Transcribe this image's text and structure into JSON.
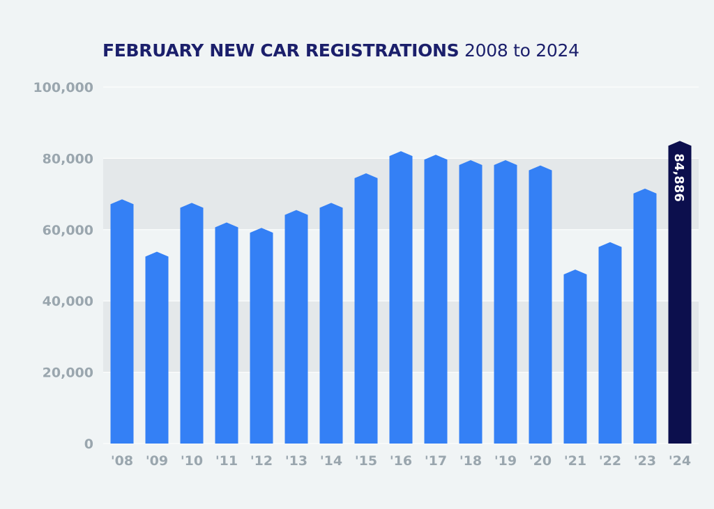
{
  "title": {
    "main": "FEBRUARY NEW CAR REGISTRATIONS",
    "sub": "2008 to 2024"
  },
  "colors": {
    "bar": "#3480f5",
    "highlight": "#0c0f4d",
    "band": "#e4e8ea",
    "grid": "#ffffff",
    "tick": "#9aa6ae",
    "title": "#1b1f6b",
    "background": "#f0f4f5"
  },
  "chart_data": {
    "type": "bar",
    "title": "FEBRUARY NEW CAR REGISTRATIONS 2008 to 2024",
    "xlabel": "",
    "ylabel": "",
    "categories": [
      "'08",
      "'09",
      "'10",
      "'11",
      "'12",
      "'13",
      "'14",
      "'15",
      "'16",
      "'17",
      "'18",
      "'19",
      "'20",
      "'21",
      "'22",
      "'23",
      "'24"
    ],
    "values": [
      68500,
      53800,
      67500,
      62000,
      60500,
      65500,
      67500,
      75800,
      82000,
      81000,
      79500,
      79500,
      78000,
      48800,
      56500,
      71500,
      84886
    ],
    "highlight_index": 16,
    "highlight_label": "84,886",
    "ylim": [
      0,
      100000
    ],
    "yticks": [
      0,
      20000,
      40000,
      60000,
      80000,
      100000
    ],
    "ytick_labels": [
      "0",
      "20,000",
      "40,000",
      "60,000",
      "80,000",
      "100,000"
    ],
    "grid": true,
    "legend": "none"
  }
}
